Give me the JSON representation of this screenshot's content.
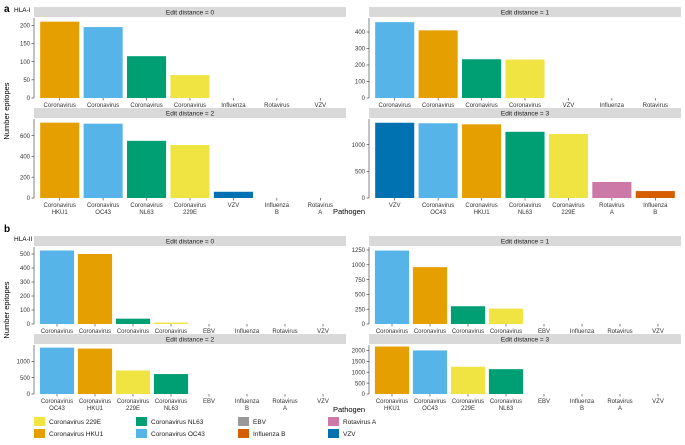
{
  "figure": {
    "section_labels": [
      "a",
      "b"
    ],
    "section_titles": [
      "HLA-I",
      "HLA-II"
    ],
    "ylabel": "Number epitopes",
    "xlabel": "Pathogen"
  },
  "legend": {
    "items": [
      {
        "label": "Coronavirus 229E",
        "color": "#f0e442"
      },
      {
        "label": "Coronavirus HKU1",
        "color": "#e69f00"
      },
      {
        "label": "Coronavirus NL63",
        "color": "#009e73"
      },
      {
        "label": "Coronavirus OC43",
        "color": "#56b4e9"
      },
      {
        "label": "EBV",
        "color": "#999999"
      },
      {
        "label": "Influenza B",
        "color": "#d55e00"
      },
      {
        "label": "Rotavirus A",
        "color": "#cc79a7"
      },
      {
        "label": "VZV",
        "color": "#0072b2"
      }
    ]
  },
  "chart_data": [
    {
      "type": "bar",
      "panel": "a",
      "title": "Edit distance = 0",
      "categories": [
        "Coronavirus\nHKU1",
        "Coronavirus\nOC43",
        "Coronavirus\nNL63",
        "Coronavirus\n229E",
        "Influenza\nB",
        "Rotavirus\nA",
        "VZV"
      ],
      "values": [
        210,
        195,
        115,
        63,
        0,
        0,
        0
      ],
      "colors": [
        "#e69f00",
        "#56b4e9",
        "#009e73",
        "#f0e442",
        "#d55e00",
        "#cc79a7",
        "#0072b2"
      ],
      "ylim": [
        0,
        220
      ],
      "yticks": [
        0,
        50,
        100,
        150,
        200
      ]
    },
    {
      "type": "bar",
      "panel": "a",
      "title": "Edit distance = 1",
      "categories": [
        "Coronavirus\nOC43",
        "Coronavirus\nHKU1",
        "Coronavirus\nNL63",
        "Coronavirus\n229E",
        "VZV",
        "Influenza\nB",
        "Rotavirus\nA"
      ],
      "values": [
        460,
        410,
        235,
        233,
        0,
        0,
        0
      ],
      "colors": [
        "#56b4e9",
        "#e69f00",
        "#009e73",
        "#f0e442",
        "#0072b2",
        "#d55e00",
        "#cc79a7"
      ],
      "ylim": [
        0,
        485
      ],
      "yticks": [
        0,
        100,
        200,
        300,
        400
      ]
    },
    {
      "type": "bar",
      "panel": "a",
      "title": "Edit distance = 2",
      "categories": [
        "Coronavirus\nHKU1",
        "Coronavirus\nOC43",
        "Coronavirus\nNL63",
        "Coronavirus\n229E",
        "VZV",
        "Influenza\nB",
        "Rotavirus\nA"
      ],
      "values": [
        725,
        715,
        550,
        510,
        60,
        0,
        0
      ],
      "colors": [
        "#e69f00",
        "#56b4e9",
        "#009e73",
        "#f0e442",
        "#0072b2",
        "#d55e00",
        "#cc79a7"
      ],
      "ylim": [
        0,
        760
      ],
      "yticks": [
        0,
        200,
        400,
        600
      ]
    },
    {
      "type": "bar",
      "panel": "a",
      "title": "Edit distance = 3",
      "categories": [
        "VZV",
        "Coronavirus\nOC43",
        "Coronavirus\nHKU1",
        "Coronavirus\nNL63",
        "Coronavirus\n229E",
        "Rotavirus\nA",
        "Influenza\nB"
      ],
      "values": [
        1410,
        1400,
        1380,
        1240,
        1200,
        300,
        130
      ],
      "colors": [
        "#0072b2",
        "#56b4e9",
        "#e69f00",
        "#009e73",
        "#f0e442",
        "#cc79a7",
        "#d55e00"
      ],
      "ylim": [
        0,
        1480
      ],
      "yticks": [
        0,
        500,
        1000
      ]
    },
    {
      "type": "bar",
      "panel": "b",
      "title": "Edit distance = 0",
      "categories": [
        "Coronavirus\nOC43",
        "Coronavirus\nHKU1",
        "Coronavirus\nNL63",
        "Coronavirus\n229E",
        "EBV",
        "Influenza\nB",
        "Rotavirus\nA",
        "VZV"
      ],
      "values": [
        525,
        500,
        38,
        10,
        0,
        0,
        0,
        0
      ],
      "colors": [
        "#56b4e9",
        "#e69f00",
        "#009e73",
        "#f0e442",
        "#999999",
        "#d55e00",
        "#cc79a7",
        "#0072b2"
      ],
      "ylim": [
        0,
        550
      ],
      "yticks": [
        0,
        100,
        200,
        300,
        400,
        500
      ]
    },
    {
      "type": "bar",
      "panel": "b",
      "title": "Edit distance = 1",
      "categories": [
        "Coronavirus\nOC43",
        "Coronavirus\nHKU1",
        "Coronavirus\nNL63",
        "Coronavirus\n229E",
        "EBV",
        "Influenza\nB",
        "Rotavirus\nA",
        "VZV"
      ],
      "values": [
        1240,
        960,
        300,
        260,
        0,
        0,
        0,
        0
      ],
      "colors": [
        "#56b4e9",
        "#e69f00",
        "#009e73",
        "#f0e442",
        "#999999",
        "#d55e00",
        "#cc79a7",
        "#0072b2"
      ],
      "ylim": [
        0,
        1300
      ],
      "yticks": [
        0,
        250,
        500,
        750,
        1000,
        1250
      ]
    },
    {
      "type": "bar",
      "panel": "b",
      "title": "Edit distance = 2",
      "categories": [
        "Coronavirus\nOC43",
        "Coronavirus\nHKU1",
        "Coronavirus\n229E",
        "Coronavirus\nNL63",
        "EBV",
        "Influenza\nB",
        "Rotavirus\nA",
        "VZV"
      ],
      "values": [
        1420,
        1390,
        720,
        610,
        0,
        0,
        0,
        0
      ],
      "colors": [
        "#56b4e9",
        "#e69f00",
        "#f0e442",
        "#009e73",
        "#999999",
        "#d55e00",
        "#cc79a7",
        "#0072b2"
      ],
      "ylim": [
        0,
        1500
      ],
      "yticks": [
        0,
        500,
        1000
      ]
    },
    {
      "type": "bar",
      "panel": "b",
      "title": "Edit distance = 3",
      "categories": [
        "Coronavirus\nHKU1",
        "Coronavirus\nOC43",
        "Coronavirus\n229E",
        "Coronavirus\nNL63",
        "EBV",
        "Influenza\nB",
        "Rotavirus\nA",
        "VZV"
      ],
      "values": [
        2180,
        2000,
        1250,
        1140,
        0,
        0,
        0,
        0
      ],
      "colors": [
        "#e69f00",
        "#56b4e9",
        "#f0e442",
        "#009e73",
        "#999999",
        "#d55e00",
        "#cc79a7",
        "#0072b2"
      ],
      "ylim": [
        0,
        2250
      ],
      "yticks": [
        0,
        500,
        1000,
        1500,
        2000
      ]
    }
  ]
}
